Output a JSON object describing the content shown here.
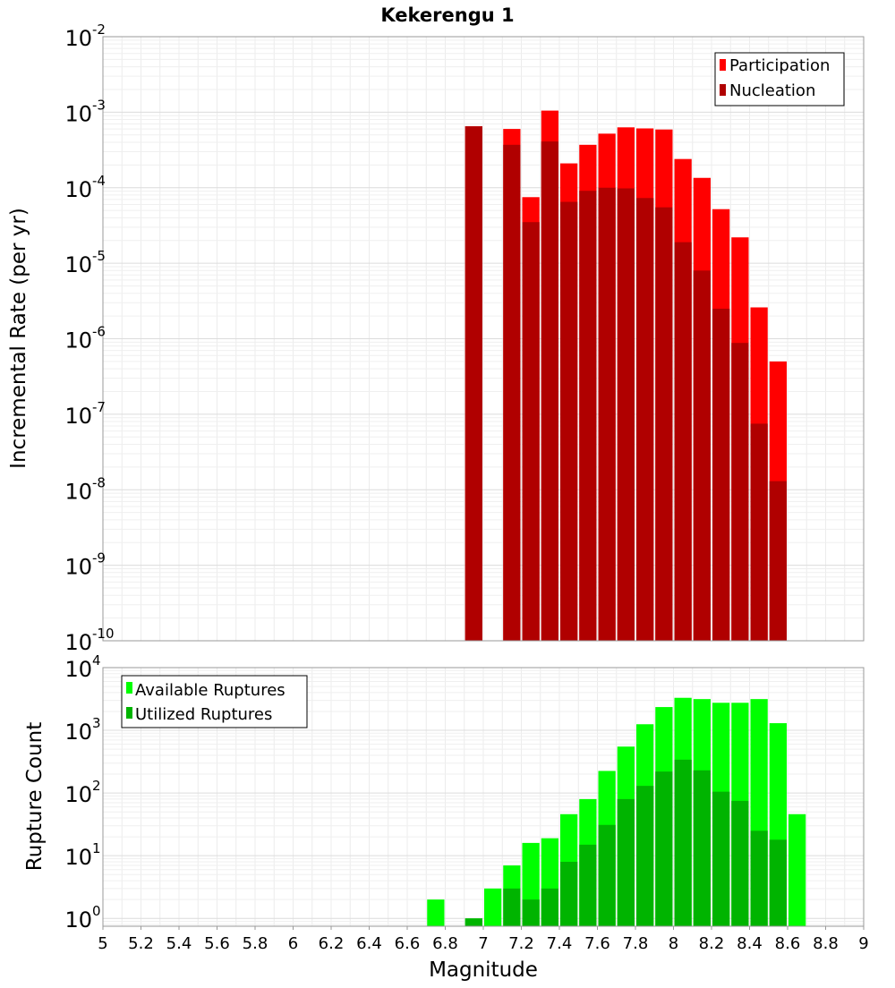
{
  "chart_data": [
    {
      "type": "bar",
      "title": "Kekerengu 1",
      "xlabel": "",
      "ylabel": "Incremental Rate (per yr)",
      "y_scale": "log",
      "ylim": [
        1e-10,
        0.01
      ],
      "y_ticks": [
        {
          "base": "10",
          "exp": "-2"
        },
        {
          "base": "10",
          "exp": "-3"
        },
        {
          "base": "10",
          "exp": "-4"
        },
        {
          "base": "10",
          "exp": "-5"
        },
        {
          "base": "10",
          "exp": "-6"
        },
        {
          "base": "10",
          "exp": "-7"
        },
        {
          "base": "10",
          "exp": "-8"
        },
        {
          "base": "10",
          "exp": "-9"
        },
        {
          "base": "10",
          "exp": "-10"
        }
      ],
      "xlim": [
        5,
        9
      ],
      "grid": true,
      "legend_position": "top-right",
      "bar_width": 0.1,
      "series": [
        {
          "name": "Participation",
          "color": "#ff0000",
          "points": [
            {
              "x": 6.95,
              "y": 0.00065
            },
            {
              "x": 7.15,
              "y": 0.0006
            },
            {
              "x": 7.25,
              "y": 7.5e-05
            },
            {
              "x": 7.35,
              "y": 0.00105
            },
            {
              "x": 7.45,
              "y": 0.00021
            },
            {
              "x": 7.55,
              "y": 0.00037
            },
            {
              "x": 7.65,
              "y": 0.00052
            },
            {
              "x": 7.75,
              "y": 0.00063
            },
            {
              "x": 7.85,
              "y": 0.00061
            },
            {
              "x": 7.95,
              "y": 0.00059
            },
            {
              "x": 8.05,
              "y": 0.00024
            },
            {
              "x": 8.15,
              "y": 0.000135
            },
            {
              "x": 8.25,
              "y": 5.2e-05
            },
            {
              "x": 8.35,
              "y": 2.2e-05
            },
            {
              "x": 8.45,
              "y": 2.6e-06
            },
            {
              "x": 8.55,
              "y": 5e-07
            }
          ]
        },
        {
          "name": "Nucleation",
          "color": "#b00000",
          "points": [
            {
              "x": 6.95,
              "y": 0.00065
            },
            {
              "x": 7.15,
              "y": 0.00037
            },
            {
              "x": 7.25,
              "y": 3.5e-05
            },
            {
              "x": 7.35,
              "y": 0.00041
            },
            {
              "x": 7.45,
              "y": 6.5e-05
            },
            {
              "x": 7.55,
              "y": 9.1e-05
            },
            {
              "x": 7.65,
              "y": 0.0001
            },
            {
              "x": 7.75,
              "y": 9.8e-05
            },
            {
              "x": 7.85,
              "y": 7.3e-05
            },
            {
              "x": 7.95,
              "y": 5.5e-05
            },
            {
              "x": 8.05,
              "y": 1.9e-05
            },
            {
              "x": 8.15,
              "y": 8e-06
            },
            {
              "x": 8.25,
              "y": 2.5e-06
            },
            {
              "x": 8.35,
              "y": 8.8e-07
            },
            {
              "x": 8.45,
              "y": 7.5e-08
            },
            {
              "x": 8.55,
              "y": 1.3e-08
            }
          ]
        }
      ]
    },
    {
      "type": "bar",
      "title": "",
      "xlabel": "Magnitude",
      "ylabel": "Rupture Count",
      "y_scale": "log",
      "ylim": [
        0.75,
        10000
      ],
      "y_ticks": [
        {
          "base": "10",
          "exp": "4"
        },
        {
          "base": "10",
          "exp": "3"
        },
        {
          "base": "10",
          "exp": "2"
        },
        {
          "base": "10",
          "exp": "1"
        },
        {
          "base": "10",
          "exp": "0"
        }
      ],
      "xlim": [
        5,
        9
      ],
      "x_ticks": [
        "5",
        "5.2",
        "5.4",
        "5.6",
        "5.8",
        "6",
        "6.2",
        "6.4",
        "6.6",
        "6.8",
        "7",
        "7.2",
        "7.4",
        "7.6",
        "7.8",
        "8",
        "8.2",
        "8.4",
        "8.6",
        "8.8",
        "9"
      ],
      "grid": true,
      "legend_position": "top-left",
      "bar_width": 0.1,
      "series": [
        {
          "name": "Available Ruptures",
          "color": "#00ff00",
          "points": [
            {
              "x": 6.75,
              "y": 2
            },
            {
              "x": 6.95,
              "y": 1
            },
            {
              "x": 7.05,
              "y": 3
            },
            {
              "x": 7.15,
              "y": 7
            },
            {
              "x": 7.25,
              "y": 16
            },
            {
              "x": 7.35,
              "y": 19
            },
            {
              "x": 7.45,
              "y": 46
            },
            {
              "x": 7.55,
              "y": 80
            },
            {
              "x": 7.65,
              "y": 225
            },
            {
              "x": 7.75,
              "y": 550
            },
            {
              "x": 7.85,
              "y": 1250
            },
            {
              "x": 7.95,
              "y": 2350
            },
            {
              "x": 8.05,
              "y": 3300
            },
            {
              "x": 8.15,
              "y": 3150
            },
            {
              "x": 8.25,
              "y": 2750
            },
            {
              "x": 8.35,
              "y": 2750
            },
            {
              "x": 8.45,
              "y": 3150
            },
            {
              "x": 8.55,
              "y": 1300
            },
            {
              "x": 8.65,
              "y": 46
            }
          ]
        },
        {
          "name": "Utilized Ruptures",
          "color": "#00b400",
          "points": [
            {
              "x": 6.95,
              "y": 1
            },
            {
              "x": 7.15,
              "y": 3
            },
            {
              "x": 7.25,
              "y": 2
            },
            {
              "x": 7.35,
              "y": 3
            },
            {
              "x": 7.45,
              "y": 8
            },
            {
              "x": 7.55,
              "y": 15
            },
            {
              "x": 7.65,
              "y": 31
            },
            {
              "x": 7.75,
              "y": 80
            },
            {
              "x": 7.85,
              "y": 130
            },
            {
              "x": 7.95,
              "y": 220
            },
            {
              "x": 8.05,
              "y": 340
            },
            {
              "x": 8.15,
              "y": 230
            },
            {
              "x": 8.25,
              "y": 105
            },
            {
              "x": 8.35,
              "y": 75
            },
            {
              "x": 8.45,
              "y": 25
            },
            {
              "x": 8.55,
              "y": 18
            }
          ]
        }
      ]
    }
  ]
}
